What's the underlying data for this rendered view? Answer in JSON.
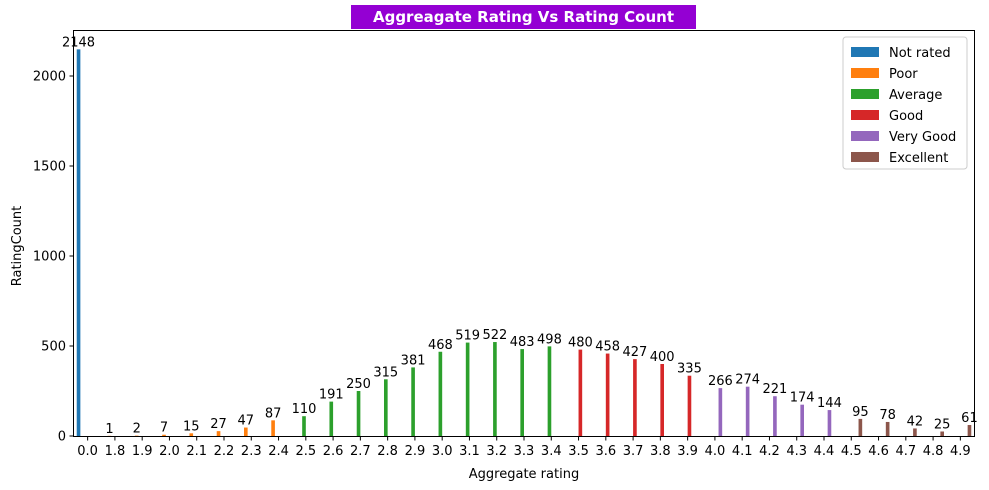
{
  "chart_data": {
    "type": "bar",
    "title": "Aggreagate Rating Vs Rating Count",
    "xlabel": "Aggregate rating",
    "ylabel": "RatingCount",
    "ylim": [
      0,
      2250
    ],
    "yticks": [
      0,
      500,
      1000,
      1500,
      2000
    ],
    "categories": [
      "0.0",
      "1.8",
      "1.9",
      "2.0",
      "2.1",
      "2.2",
      "2.3",
      "2.4",
      "2.5",
      "2.6",
      "2.7",
      "2.8",
      "2.9",
      "3.0",
      "3.1",
      "3.2",
      "3.3",
      "3.4",
      "3.5",
      "3.6",
      "3.7",
      "3.8",
      "3.9",
      "4.0",
      "4.1",
      "4.2",
      "4.3",
      "4.4",
      "4.5",
      "4.6",
      "4.7",
      "4.8",
      "4.9"
    ],
    "grid": false,
    "legend_position": "top-right",
    "title_background": "#9400d3",
    "series": [
      {
        "name": "Not rated",
        "color": "#1f77b4",
        "values": [
          2148,
          null,
          null,
          null,
          null,
          null,
          null,
          null,
          null,
          null,
          null,
          null,
          null,
          null,
          null,
          null,
          null,
          null,
          null,
          null,
          null,
          null,
          null,
          null,
          null,
          null,
          null,
          null,
          null,
          null,
          null,
          null,
          null
        ]
      },
      {
        "name": "Poor",
        "color": "#ff7f0e",
        "values": [
          null,
          1,
          2,
          7,
          15,
          27,
          47,
          87,
          null,
          null,
          null,
          null,
          null,
          null,
          null,
          null,
          null,
          null,
          null,
          null,
          null,
          null,
          null,
          null,
          null,
          null,
          null,
          null,
          null,
          null,
          null,
          null,
          null
        ]
      },
      {
        "name": "Average",
        "color": "#2ca02c",
        "values": [
          null,
          null,
          null,
          null,
          null,
          null,
          null,
          null,
          110,
          191,
          250,
          315,
          381,
          468,
          519,
          522,
          483,
          498,
          null,
          null,
          null,
          null,
          null,
          null,
          null,
          null,
          null,
          null,
          null,
          null,
          null,
          null,
          null
        ]
      },
      {
        "name": "Good",
        "color": "#d62728",
        "values": [
          null,
          null,
          null,
          null,
          null,
          null,
          null,
          null,
          null,
          null,
          null,
          null,
          null,
          null,
          null,
          null,
          null,
          null,
          480,
          458,
          427,
          400,
          335,
          null,
          null,
          null,
          null,
          null,
          null,
          null,
          null,
          null,
          null
        ]
      },
      {
        "name": "Very Good",
        "color": "#9467bd",
        "values": [
          null,
          null,
          null,
          null,
          null,
          null,
          null,
          null,
          null,
          null,
          null,
          null,
          null,
          null,
          null,
          null,
          null,
          null,
          null,
          null,
          null,
          null,
          null,
          266,
          274,
          221,
          174,
          144,
          null,
          null,
          null,
          null,
          null
        ]
      },
      {
        "name": "Excellent",
        "color": "#8c564b",
        "values": [
          null,
          null,
          null,
          null,
          null,
          null,
          null,
          null,
          null,
          null,
          null,
          null,
          null,
          null,
          null,
          null,
          null,
          null,
          null,
          null,
          null,
          null,
          null,
          null,
          null,
          null,
          null,
          null,
          95,
          78,
          42,
          25,
          61
        ]
      }
    ]
  }
}
